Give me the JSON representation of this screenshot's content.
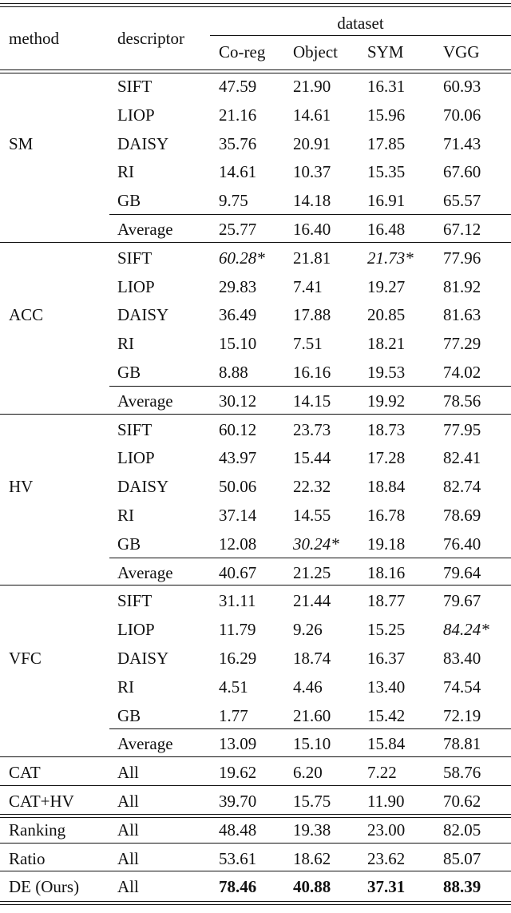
{
  "table": {
    "header": {
      "method": "method",
      "descriptor": "descriptor",
      "group": "dataset",
      "columns": [
        "Co-reg",
        "Object",
        "SYM",
        "VGG"
      ]
    },
    "groups": [
      {
        "method": "SM",
        "rows": [
          {
            "descriptor": "SIFT",
            "values": [
              "47.59",
              "21.90",
              "16.31",
              "60.93"
            ]
          },
          {
            "descriptor": "LIOP",
            "values": [
              "21.16",
              "14.61",
              "15.96",
              "70.06"
            ]
          },
          {
            "descriptor": "DAISY",
            "values": [
              "35.76",
              "20.91",
              "17.85",
              "71.43"
            ]
          },
          {
            "descriptor": "RI",
            "values": [
              "14.61",
              "10.37",
              "15.35",
              "67.60"
            ]
          },
          {
            "descriptor": "GB",
            "values": [
              "9.75",
              "14.18",
              "16.91",
              "65.57"
            ]
          }
        ],
        "average": {
          "descriptor": "Average",
          "values": [
            "25.77",
            "16.40",
            "16.48",
            "67.12"
          ]
        }
      },
      {
        "method": "ACC",
        "rows": [
          {
            "descriptor": "SIFT",
            "values": [
              {
                "text": "60.28*",
                "italic": true
              },
              "21.81",
              {
                "text": "21.73*",
                "italic": true
              },
              "77.96"
            ]
          },
          {
            "descriptor": "LIOP",
            "values": [
              "29.83",
              "7.41",
              "19.27",
              "81.92"
            ]
          },
          {
            "descriptor": "DAISY",
            "values": [
              "36.49",
              "17.88",
              "20.85",
              "81.63"
            ]
          },
          {
            "descriptor": "RI",
            "values": [
              "15.10",
              "7.51",
              "18.21",
              "77.29"
            ]
          },
          {
            "descriptor": "GB",
            "values": [
              "8.88",
              "16.16",
              "19.53",
              "74.02"
            ]
          }
        ],
        "average": {
          "descriptor": "Average",
          "values": [
            "30.12",
            "14.15",
            "19.92",
            "78.56"
          ]
        }
      },
      {
        "method": "HV",
        "rows": [
          {
            "descriptor": "SIFT",
            "values": [
              "60.12",
              "23.73",
              "18.73",
              "77.95"
            ]
          },
          {
            "descriptor": "LIOP",
            "values": [
              "43.97",
              "15.44",
              "17.28",
              "82.41"
            ]
          },
          {
            "descriptor": "DAISY",
            "values": [
              "50.06",
              "22.32",
              "18.84",
              "82.74"
            ]
          },
          {
            "descriptor": "RI",
            "values": [
              "37.14",
              "14.55",
              "16.78",
              "78.69"
            ]
          },
          {
            "descriptor": "GB",
            "values": [
              "12.08",
              {
                "text": "30.24*",
                "italic": true
              },
              "19.18",
              "76.40"
            ]
          }
        ],
        "average": {
          "descriptor": "Average",
          "values": [
            "40.67",
            "21.25",
            "18.16",
            "79.64"
          ]
        }
      },
      {
        "method": "VFC",
        "rows": [
          {
            "descriptor": "SIFT",
            "values": [
              "31.11",
              "21.44",
              "18.77",
              "79.67"
            ]
          },
          {
            "descriptor": "LIOP",
            "values": [
              "11.79",
              "9.26",
              "15.25",
              {
                "text": "84.24*",
                "italic": true
              }
            ]
          },
          {
            "descriptor": "DAISY",
            "values": [
              "16.29",
              "18.74",
              "16.37",
              "83.40"
            ]
          },
          {
            "descriptor": "RI",
            "values": [
              "4.51",
              "4.46",
              "13.40",
              "74.54"
            ]
          },
          {
            "descriptor": "GB",
            "values": [
              "1.77",
              "21.60",
              "15.42",
              "72.19"
            ]
          }
        ],
        "average": {
          "descriptor": "Average",
          "values": [
            "13.09",
            "15.10",
            "15.84",
            "78.81"
          ]
        }
      },
      {
        "method": "CAT",
        "rows": [
          {
            "descriptor": "All",
            "values": [
              "19.62",
              "6.20",
              "7.22",
              "58.76"
            ]
          }
        ]
      },
      {
        "method": "CAT+HV",
        "rows": [
          {
            "descriptor": "All",
            "values": [
              "39.70",
              "15.75",
              "11.90",
              "70.62"
            ]
          }
        ]
      },
      {
        "method": "Ranking",
        "rule": "double",
        "rows": [
          {
            "descriptor": "All",
            "values": [
              "48.48",
              "19.38",
              "23.00",
              "82.05"
            ]
          }
        ]
      },
      {
        "method": "Ratio",
        "rows": [
          {
            "descriptor": "All",
            "values": [
              "53.61",
              "18.62",
              "23.62",
              "85.07"
            ]
          }
        ]
      },
      {
        "method": "DE (Ours)",
        "rows": [
          {
            "descriptor": "All",
            "bold": true,
            "values": [
              "78.46",
              "40.88",
              "37.31",
              "88.39"
            ]
          }
        ]
      }
    ]
  }
}
